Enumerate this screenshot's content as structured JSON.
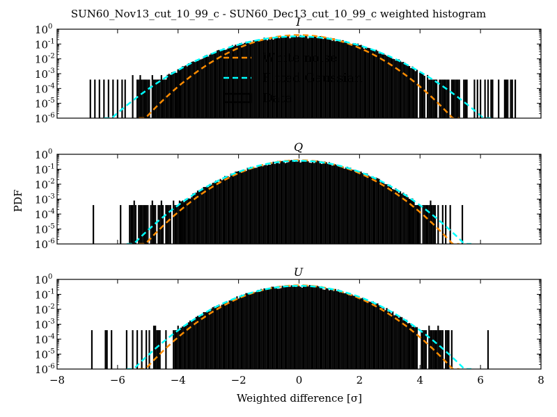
{
  "chart_data": {
    "type": "bar",
    "title": "SUN60_Nov13_cut_10_99_c - SUN60_Dec13_cut_10_99_c weighted histogram",
    "xlabel": "Weighted difference [σ]",
    "ylabel": "PDF",
    "xlim": [
      -8,
      8
    ],
    "ylim": [
      1e-06,
      1
    ],
    "yscale": "log",
    "x_ticks": [
      -8,
      -6,
      -4,
      -2,
      0,
      2,
      4,
      6,
      8
    ],
    "x_tick_labels": [
      "−8",
      "−6",
      "−4",
      "−2",
      "0",
      "2",
      "4",
      "6",
      "8"
    ],
    "y_tick_exponents": [
      "0",
      "-1",
      "-2",
      "-3",
      "-4",
      "-5",
      "-6"
    ],
    "y_tick_base": "10",
    "legend": {
      "placement": "upper-center (top panel)",
      "entries": [
        {
          "label": "White noise",
          "style": "dashed",
          "color": "#ff8c00"
        },
        {
          "label": "Fitted Gaussian",
          "style": "dashed",
          "color": "#00ffff"
        },
        {
          "label": "Data",
          "style": "bar-outline",
          "color": "#000000"
        }
      ]
    },
    "colors": {
      "white_noise": "#ff8c00",
      "fitted_gaussian": "#00ffff",
      "data": "#000000"
    },
    "panels": [
      {
        "name": "I",
        "white_noise": {
          "mean": 0,
          "sigma": 1.0
        },
        "fitted_gaussian": {
          "mean": -0.05,
          "sigma": 1.22
        },
        "core_range": [
          -4.0,
          3.9
        ],
        "dense_tail_left": [
          -5.5,
          -3.95
        ],
        "dense_tail_right": [
          4.0,
          5.3
        ],
        "isolated_bins": [
          -6.9,
          -6.75,
          -6.6,
          -6.45,
          -6.3,
          -6.15,
          -6.0,
          -5.85,
          -5.75,
          5.45,
          5.5,
          5.55,
          5.8,
          5.9,
          6.0,
          6.15,
          6.25,
          6.35,
          6.4,
          6.6,
          6.8,
          6.85,
          6.9,
          7.0,
          7.05,
          7.15
        ],
        "min_bin_value": 0.0004
      },
      {
        "name": "Q",
        "white_noise": {
          "mean": 0,
          "sigma": 1.0
        },
        "fitted_gaussian": {
          "mean": 0.0,
          "sigma": 1.08
        },
        "core_range": [
          -3.9,
          3.7
        ],
        "dense_tail_left": [
          -5.6,
          -3.85
        ],
        "dense_tail_right": [
          3.7,
          4.5
        ],
        "isolated_bins": [
          -6.8,
          -5.9,
          4.6,
          4.75,
          4.85,
          5.0,
          5.4
        ],
        "min_bin_value": 0.0004
      },
      {
        "name": "U",
        "white_noise": {
          "mean": 0,
          "sigma": 1.0
        },
        "fitted_gaussian": {
          "mean": 0.0,
          "sigma": 1.08
        },
        "core_range": [
          -3.9,
          3.9
        ],
        "dense_tail_left": [
          -4.8,
          -3.9
        ],
        "dense_tail_right": [
          4.0,
          4.75
        ],
        "isolated_bins": [
          -6.85,
          -6.4,
          -6.35,
          -6.2,
          -5.7,
          -5.5,
          -5.35,
          -5.2,
          -5.05,
          -4.95,
          3.75,
          3.8,
          4.85,
          4.9,
          4.95,
          5.05,
          6.25
        ],
        "min_bin_value": 0.0004
      }
    ]
  }
}
